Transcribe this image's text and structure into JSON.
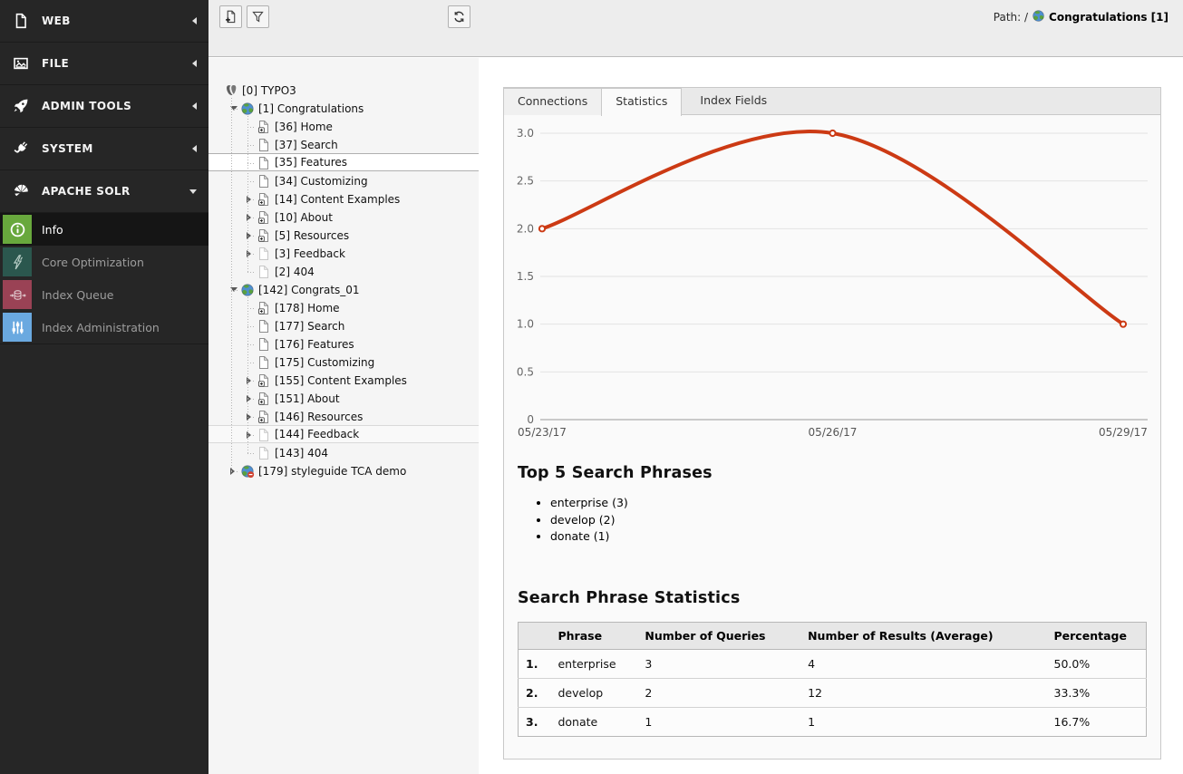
{
  "module_menu": {
    "sections": [
      {
        "id": "web",
        "label": "WEB",
        "icon": "doc",
        "state": "collapsed"
      },
      {
        "id": "file",
        "label": "FILE",
        "icon": "image",
        "state": "collapsed"
      },
      {
        "id": "admin-tools",
        "label": "ADMIN TOOLS",
        "icon": "rocket",
        "state": "collapsed"
      },
      {
        "id": "system",
        "label": "SYSTEM",
        "icon": "plug",
        "state": "collapsed"
      },
      {
        "id": "apache-solr",
        "label": "APACHE SOLR",
        "icon": "solr",
        "state": "expanded",
        "children": [
          {
            "id": "info",
            "label": "Info",
            "icon": "info",
            "color": "#68a83d",
            "active": true
          },
          {
            "id": "core-optimization",
            "label": "Core Optimization",
            "icon": "lightning",
            "color": "#2b574e",
            "active": false
          },
          {
            "id": "index-queue",
            "label": "Index Queue",
            "icon": "queue",
            "color": "#9a4255",
            "active": false
          },
          {
            "id": "index-administration",
            "label": "Index Administration",
            "icon": "sliders",
            "color": "#6aa9e0",
            "active": false
          }
        ]
      }
    ]
  },
  "docheader": {
    "path_label": "Path: /",
    "page": "Congratulations [1]"
  },
  "pagetree": {
    "toolbar": [
      {
        "id": "new-page",
        "icon": "new-page"
      },
      {
        "id": "filter",
        "icon": "filter"
      },
      {
        "id": "refresh",
        "icon": "refresh"
      }
    ],
    "nodes": [
      {
        "label": "[0] TYPO3",
        "indent": 0,
        "icon": "typo3",
        "toggle": "none",
        "selected": "none"
      },
      {
        "label": "[1] Congratulations",
        "indent": 1,
        "icon": "site",
        "toggle": "expanded",
        "selected": "none"
      },
      {
        "label": "[36] Home",
        "indent": 2,
        "icon": "shortcut",
        "toggle": "none",
        "selected": "none"
      },
      {
        "label": "[37] Search",
        "indent": 2,
        "icon": "page",
        "toggle": "none",
        "selected": "none"
      },
      {
        "label": "[35] Features",
        "indent": 2,
        "icon": "page",
        "toggle": "none",
        "selected": "primary"
      },
      {
        "label": "[34] Customizing",
        "indent": 2,
        "icon": "page",
        "toggle": "none",
        "selected": "none"
      },
      {
        "label": "[14] Content Examples",
        "indent": 2,
        "icon": "shortcut",
        "toggle": "collapsed",
        "selected": "none"
      },
      {
        "label": "[10] About",
        "indent": 2,
        "icon": "shortcut",
        "toggle": "collapsed",
        "selected": "none"
      },
      {
        "label": "[5] Resources",
        "indent": 2,
        "icon": "shortcut",
        "toggle": "collapsed",
        "selected": "none"
      },
      {
        "label": "[3] Feedback",
        "indent": 2,
        "icon": "page-dim",
        "toggle": "collapsed",
        "selected": "none"
      },
      {
        "label": "[2] 404",
        "indent": 2,
        "icon": "page-dim",
        "toggle": "none",
        "selected": "none"
      },
      {
        "label": "[142] Congrats_01",
        "indent": 1,
        "icon": "site",
        "toggle": "expanded",
        "selected": "none"
      },
      {
        "label": "[178] Home",
        "indent": 2,
        "icon": "shortcut",
        "toggle": "none",
        "selected": "none"
      },
      {
        "label": "[177] Search",
        "indent": 2,
        "icon": "page",
        "toggle": "none",
        "selected": "none"
      },
      {
        "label": "[176] Features",
        "indent": 2,
        "icon": "page",
        "toggle": "none",
        "selected": "none"
      },
      {
        "label": "[175] Customizing",
        "indent": 2,
        "icon": "page",
        "toggle": "none",
        "selected": "none"
      },
      {
        "label": "[155] Content Examples",
        "indent": 2,
        "icon": "shortcut",
        "toggle": "collapsed",
        "selected": "none"
      },
      {
        "label": "[151] About",
        "indent": 2,
        "icon": "shortcut",
        "toggle": "collapsed",
        "selected": "none"
      },
      {
        "label": "[146] Resources",
        "indent": 2,
        "icon": "shortcut",
        "toggle": "collapsed",
        "selected": "none"
      },
      {
        "label": "[144] Feedback",
        "indent": 2,
        "icon": "page-dim",
        "toggle": "collapsed",
        "selected": "secondary"
      },
      {
        "label": "[143] 404",
        "indent": 2,
        "icon": "page-dim",
        "toggle": "none",
        "selected": "none"
      },
      {
        "label": "[179] styleguide TCA demo",
        "indent": 1,
        "icon": "site-hidden",
        "toggle": "collapsed",
        "selected": "none"
      }
    ]
  },
  "tabs": [
    {
      "label": "Connections",
      "active": false,
      "variant": "boxed"
    },
    {
      "label": "Statistics",
      "active": true,
      "variant": "boxed"
    },
    {
      "label": "Index Fields",
      "active": false,
      "variant": "plain"
    }
  ],
  "chart_data": {
    "type": "line",
    "x": [
      "05/23/17",
      "05/26/17",
      "05/29/17"
    ],
    "series": [
      {
        "values": [
          2,
          3,
          1
        ]
      }
    ],
    "ylim": [
      0,
      3
    ],
    "yticks": [
      0,
      0.5,
      1,
      1.5,
      2,
      2.5,
      3
    ],
    "ytick_labels": [
      "0",
      "0.5",
      "1.0",
      "1.5",
      "2.0",
      "2.5",
      "3.0"
    ],
    "grid": true,
    "legend": "none",
    "line_color": "#cc3a14",
    "grid_color": "#e3e3e3",
    "axis_color": "#9a9a9a",
    "marker": "circle-open"
  },
  "top_phrases": {
    "title": "Top 5 Search Phrases",
    "items": [
      "enterprise (3)",
      "develop (2)",
      "donate (1)"
    ]
  },
  "stats_table": {
    "title": "Search Phrase Statistics",
    "columns": [
      "",
      "Phrase",
      "Number of Queries",
      "Number of Results (Average)",
      "Percentage"
    ],
    "rows": [
      {
        "rank": "1.",
        "phrase": "enterprise",
        "queries": "3",
        "results": "4",
        "percentage": "50.0%"
      },
      {
        "rank": "2.",
        "phrase": "develop",
        "queries": "2",
        "results": "12",
        "percentage": "33.3%"
      },
      {
        "rank": "3.",
        "phrase": "donate",
        "queries": "1",
        "results": "1",
        "percentage": "16.7%"
      }
    ]
  }
}
